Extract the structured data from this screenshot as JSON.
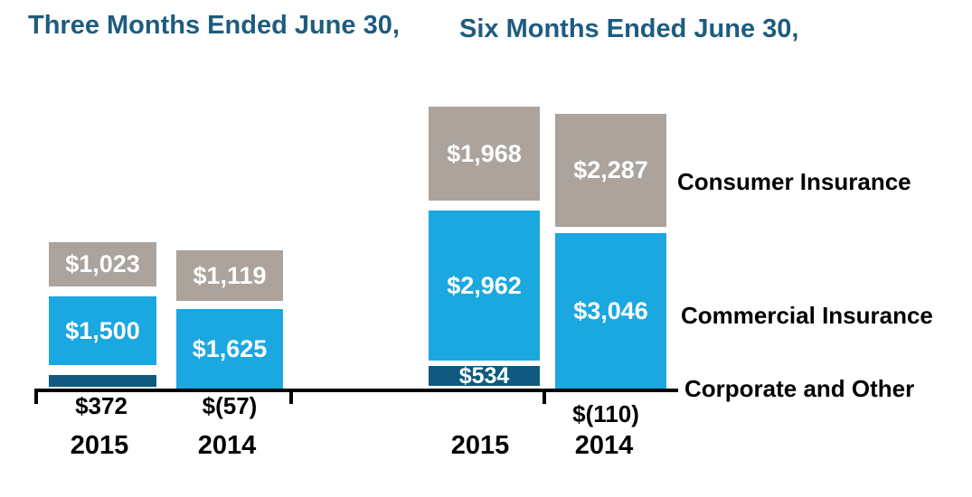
{
  "colors": {
    "consumer_gray": "#aba39c",
    "commercial_blue": "#1ba7e0",
    "corporate_navy": "#0f5a7e",
    "title_blue": "#1d5c7f",
    "axis_black": "#000000",
    "bar_label_white": "#ffffff"
  },
  "chart_data": {
    "type": "bar",
    "stacked": true,
    "grid": false,
    "legend_position": "right",
    "legend": [
      "Consumer Insurance",
      "Commercial Insurance",
      "Corporate and Other"
    ],
    "charts": [
      {
        "title": "Three Months Ended June 30,",
        "categories": [
          "2015",
          "2014"
        ],
        "series": [
          {
            "name": "Consumer Insurance",
            "values": [
              1023,
              1119
            ],
            "labels": [
              "$1,023",
              "$1,119"
            ]
          },
          {
            "name": "Commercial Insurance",
            "values": [
              1500,
              1625
            ],
            "labels": [
              "$1,500",
              "$1,625"
            ]
          },
          {
            "name": "Corporate and Other",
            "values": [
              372,
              -57
            ],
            "labels": [
              "$372",
              "$(57)"
            ]
          }
        ]
      },
      {
        "title": "Six Months Ended June 30,",
        "categories": [
          "2015",
          "2014"
        ],
        "series": [
          {
            "name": "Consumer Insurance",
            "values": [
              1968,
              2287
            ],
            "labels": [
              "$1,968",
              "$2,287"
            ]
          },
          {
            "name": "Commercial Insurance",
            "values": [
              2962,
              3046
            ],
            "labels": [
              "$2,962",
              "$3,046"
            ]
          },
          {
            "name": "Corporate and Other",
            "values": [
              534,
              -110
            ],
            "labels": [
              "$534",
              "$(110)"
            ]
          }
        ]
      }
    ]
  }
}
